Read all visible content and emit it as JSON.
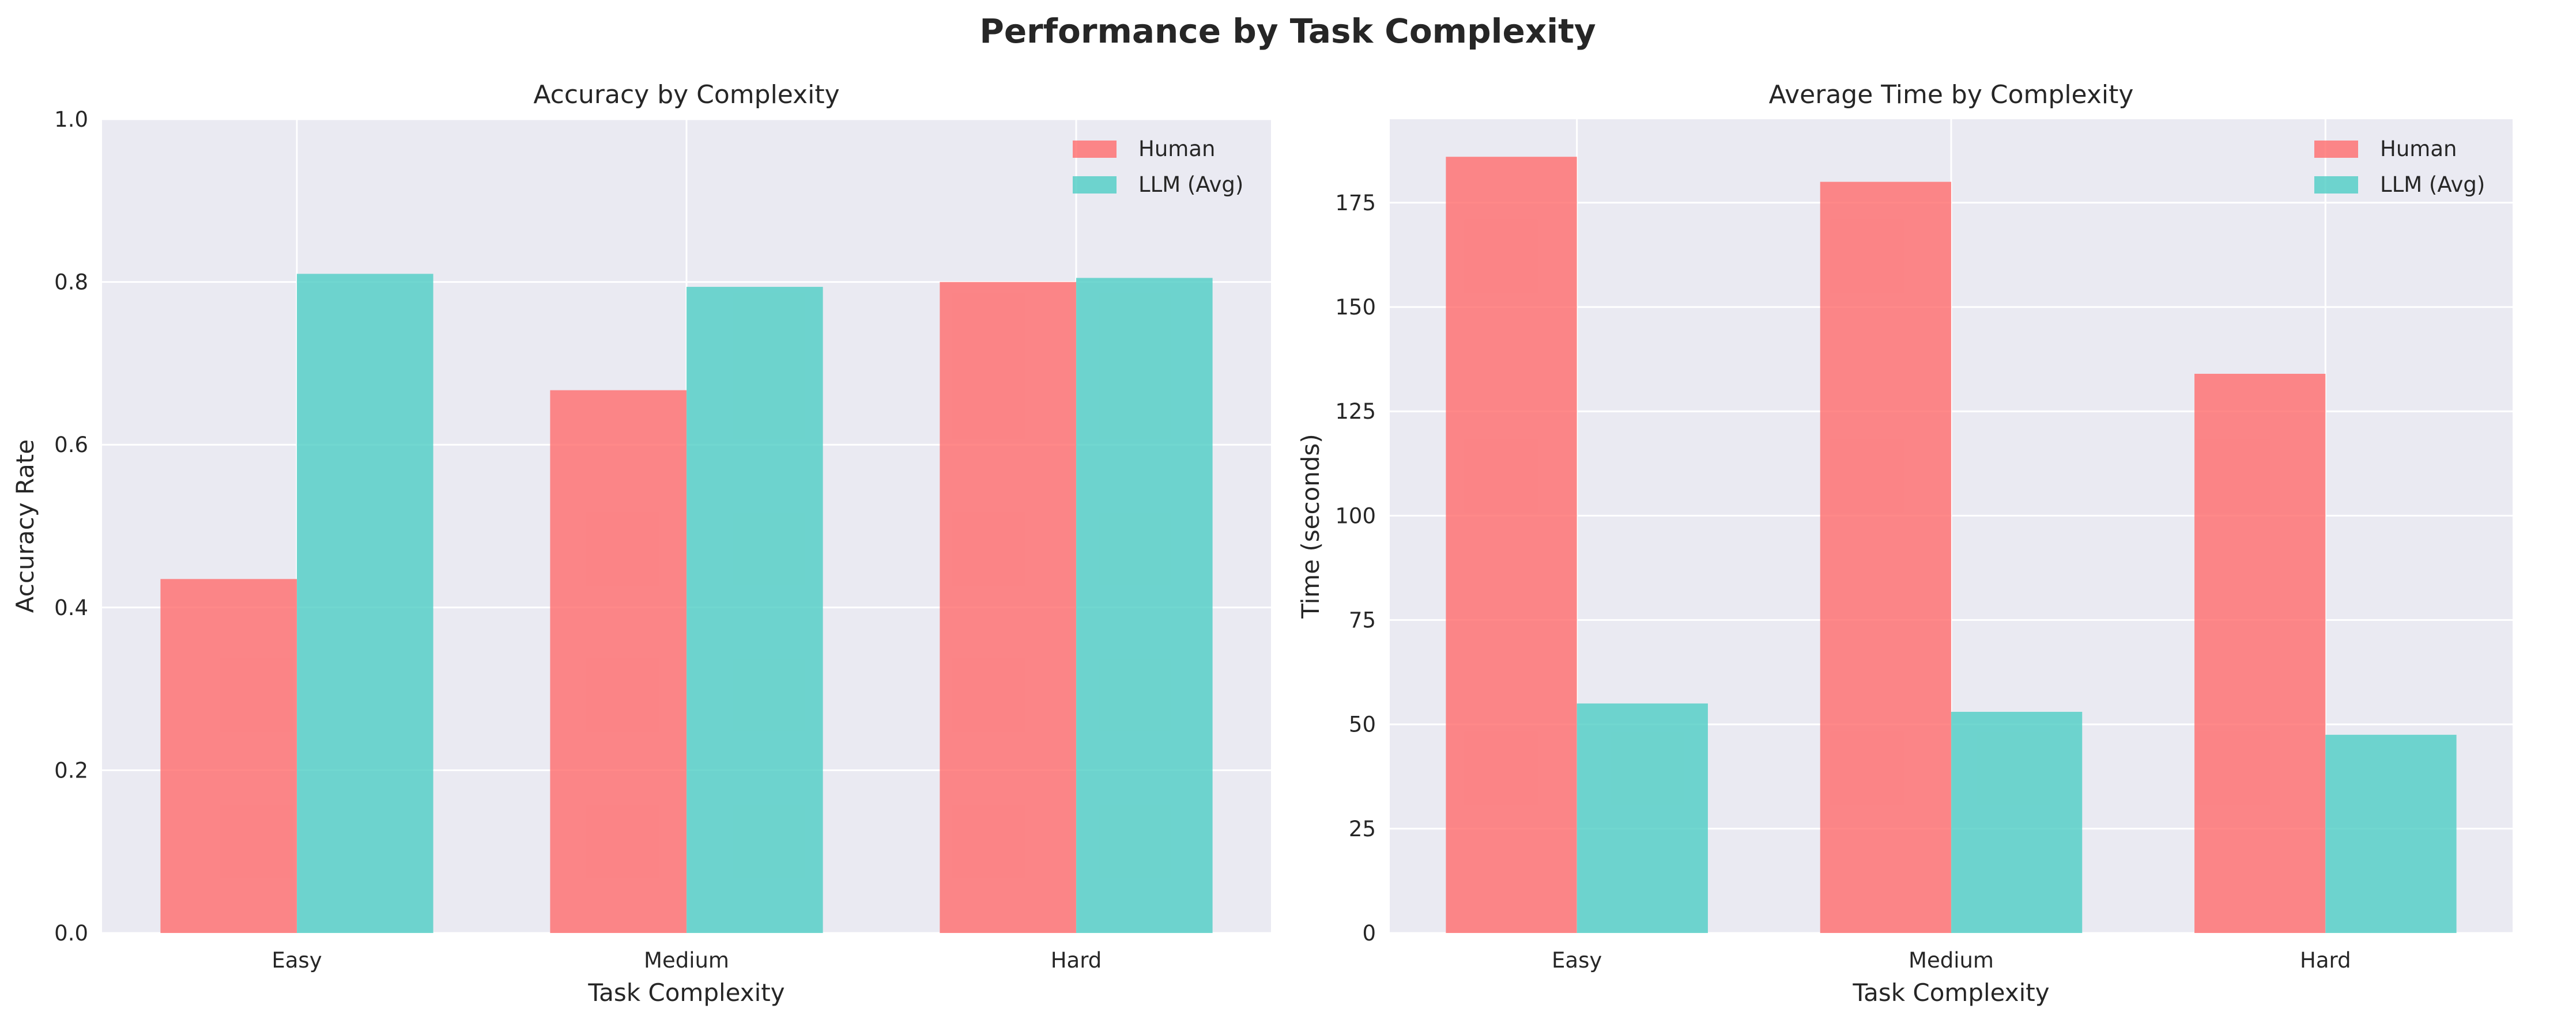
{
  "figure": {
    "title": "Performance by Task Complexity"
  },
  "colors": {
    "human": "#ff6b6b",
    "llm": "#4ecdc4",
    "axes_background": "#eaeaf2",
    "grid": "#ffffff"
  },
  "chart_data": [
    {
      "type": "bar",
      "title": "Accuracy by Complexity",
      "xlabel": "Task Complexity",
      "ylabel": "Accuracy Rate",
      "categories": [
        "Easy",
        "Medium",
        "Hard"
      ],
      "series": [
        {
          "name": "Human",
          "color": "#ff6b6b",
          "values": [
            0.435,
            0.667,
            0.8
          ]
        },
        {
          "name": "LLM (Avg)",
          "color": "#4ecdc4",
          "values": [
            0.81,
            0.794,
            0.805
          ]
        }
      ],
      "ylim": [
        0,
        1.0
      ],
      "yticks": [
        "0.0",
        "0.2",
        "0.4",
        "0.6",
        "0.8",
        "1.0"
      ],
      "grid": true,
      "legend_position": "top-right"
    },
    {
      "type": "bar",
      "title": "Average Time by Complexity",
      "xlabel": "Task Complexity",
      "ylabel": "Time (seconds)",
      "categories": [
        "Easy",
        "Medium",
        "Hard"
      ],
      "series": [
        {
          "name": "Human",
          "color": "#ff6b6b",
          "values": [
            186,
            180,
            134
          ]
        },
        {
          "name": "LLM (Avg)",
          "color": "#4ecdc4",
          "values": [
            55,
            53,
            47.5
          ]
        }
      ],
      "ylim": [
        0,
        195
      ],
      "yticks": [
        "0",
        "25",
        "50",
        "75",
        "100",
        "125",
        "150",
        "175"
      ],
      "grid": true,
      "legend_position": "top-right"
    }
  ]
}
